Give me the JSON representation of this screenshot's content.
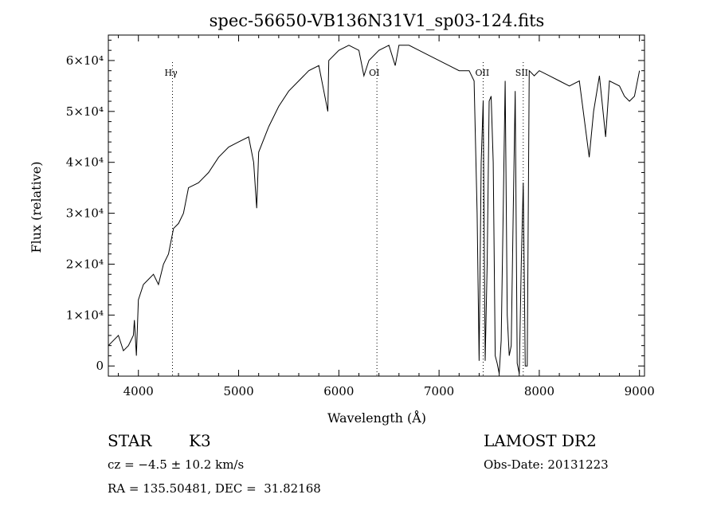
{
  "chart_data": {
    "type": "line",
    "title": "spec-56650-VB136N31V1_sp03-124.fits",
    "xlabel": "Wavelength (Å)",
    "ylabel": "Flux (relative)",
    "xlim": [
      3700,
      9050
    ],
    "ylim": [
      -2000,
      65000
    ],
    "xticks": [
      4000,
      5000,
      6000,
      7000,
      8000,
      9000
    ],
    "yticks": [
      {
        "value": 0,
        "label": "0"
      },
      {
        "value": 10000,
        "label": "1×10⁴"
      },
      {
        "value": 20000,
        "label": "2×10⁴"
      },
      {
        "value": 30000,
        "label": "3×10⁴"
      },
      {
        "value": 40000,
        "label": "4×10⁴"
      },
      {
        "value": 50000,
        "label": "5×10⁴"
      },
      {
        "value": 60000,
        "label": "6×10⁴"
      }
    ],
    "lines": [
      {
        "name": "Hγ",
        "x": 4340
      },
      {
        "name": "OI",
        "x": 6380
      },
      {
        "name": "OII",
        "x": 7440
      },
      {
        "name": "SII",
        "x": 7840
      }
    ],
    "series": [
      {
        "x": [
          3700,
          3750,
          3800,
          3850,
          3900,
          3950,
          3960,
          3980,
          4000,
          4050,
          4100,
          4150,
          4200,
          4250,
          4300,
          4350,
          4400,
          4450,
          4500,
          4600,
          4700,
          4800,
          4900,
          5000,
          5100,
          5150,
          5180,
          5200,
          5300,
          5400,
          5500,
          5600,
          5700,
          5800,
          5890,
          5900,
          6000,
          6100,
          6200,
          6250,
          6300,
          6400,
          6500,
          6563,
          6600,
          6700,
          6800,
          6900,
          7000,
          7100,
          7200,
          7300,
          7350,
          7380,
          7400,
          7420,
          7440,
          7460,
          7480,
          7500,
          7520,
          7540,
          7560,
          7580,
          7600,
          7620,
          7640,
          7660,
          7680,
          7700,
          7720,
          7740,
          7760,
          7780,
          7800,
          7820,
          7840,
          7860,
          7880,
          7900,
          7950,
          8000,
          8100,
          8200,
          8300,
          8400,
          8498,
          8542,
          8600,
          8662,
          8700,
          8800,
          8850,
          8900,
          8950,
          9000
        ],
        "y": [
          4000,
          5000,
          6000,
          3000,
          4000,
          6000,
          9000,
          2000,
          13000,
          16000,
          17000,
          18000,
          16000,
          20000,
          22000,
          27000,
          28000,
          30000,
          35000,
          36000,
          38000,
          41000,
          43000,
          44000,
          45000,
          40000,
          31000,
          42000,
          47000,
          51000,
          54000,
          56000,
          58000,
          59000,
          50000,
          60000,
          62000,
          63000,
          62000,
          57000,
          60000,
          62000,
          63000,
          59000,
          63000,
          63000,
          62000,
          61000,
          60000,
          59000,
          58000,
          58000,
          56000,
          30000,
          1000,
          40000,
          52000,
          1000,
          20000,
          52000,
          53000,
          40000,
          2000,
          500,
          -1500,
          5000,
          30000,
          56000,
          10000,
          2000,
          4000,
          30000,
          54000,
          500,
          -1500,
          20000,
          36000,
          0,
          0,
          58000,
          57000,
          58000,
          57000,
          56000,
          55000,
          56000,
          41000,
          50000,
          57000,
          45000,
          56000,
          55000,
          53000,
          52000,
          53000,
          58000
        ]
      }
    ]
  },
  "info": {
    "object_class": "STAR",
    "subclass": "K3",
    "survey": "LAMOST DR2",
    "velocity": "cz = −4.5 ± 10.2 km/s",
    "obs_date": "Obs-Date: 20131223",
    "coords": "RA = 135.50481, DEC =  31.82168"
  }
}
